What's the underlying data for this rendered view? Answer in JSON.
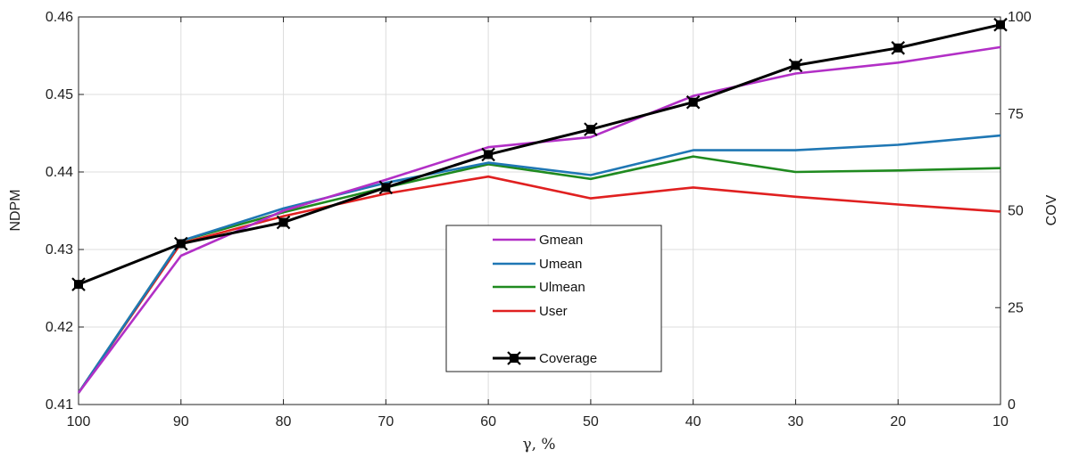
{
  "chart_data": {
    "type": "line",
    "xlabel": "γ, %",
    "ylabel_left": "NDPM",
    "ylabel_right": "COV",
    "x": [
      100,
      90,
      80,
      70,
      60,
      50,
      40,
      30,
      20,
      10
    ],
    "x_tick_labels": [
      "100",
      "90",
      "80",
      "70",
      "60",
      "50",
      "40",
      "30",
      "20",
      "10"
    ],
    "x_reversed": true,
    "ylim_left": [
      0.41,
      0.46
    ],
    "y_left_tick_labels": [
      "0.41",
      "0.42",
      "0.43",
      "0.44",
      "0.45",
      "0.46"
    ],
    "ylim_right": [
      0,
      100
    ],
    "y_right_tick_labels": [
      "0",
      "25",
      "50",
      "75",
      "100"
    ],
    "grid": true,
    "legend_position": "center",
    "series": [
      {
        "name": "Gmean",
        "axis": "left",
        "color": "#b22fc6",
        "values": [
          0.4115,
          0.4292,
          0.435,
          0.439,
          0.4432,
          0.4445,
          0.4498,
          0.4527,
          0.4541,
          0.4561
        ]
      },
      {
        "name": "Umean",
        "axis": "left",
        "color": "#1f77b4",
        "values": [
          0.4115,
          0.4311,
          0.4353,
          0.4386,
          0.4412,
          0.4396,
          0.4428,
          0.4428,
          0.4435,
          0.4447
        ]
      },
      {
        "name": "Ulmean",
        "axis": "left",
        "color": "#1f8a1f",
        "values": [
          0.4115,
          0.4311,
          0.4348,
          0.438,
          0.441,
          0.4391,
          0.442,
          0.44,
          0.4402,
          0.4405
        ]
      },
      {
        "name": "User",
        "axis": "left",
        "color": "#e02020",
        "values": [
          0.4115,
          0.4308,
          0.4343,
          0.4372,
          0.4394,
          0.4366,
          0.438,
          0.4368,
          0.4358,
          0.4349
        ]
      },
      {
        "name": "Coverage",
        "axis": "right",
        "color": "#000000",
        "marker": "square",
        "values": [
          31,
          41.5,
          47,
          56,
          64.5,
          71,
          78,
          87.5,
          92,
          98
        ]
      }
    ]
  }
}
